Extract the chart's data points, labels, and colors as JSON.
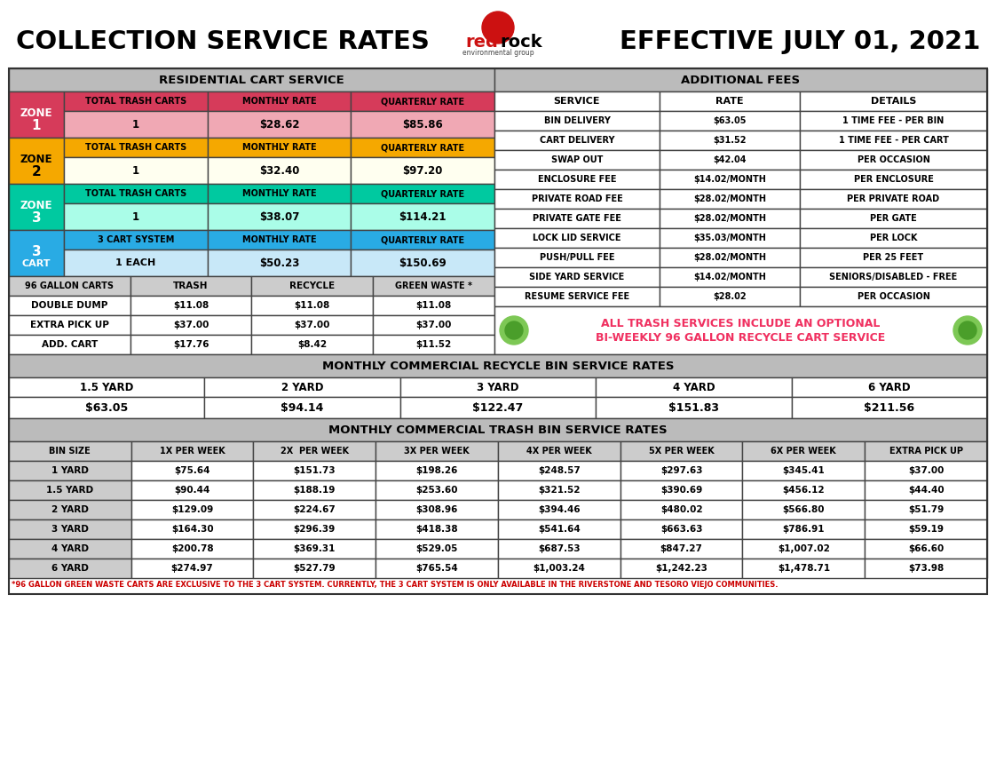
{
  "title_left": "COLLECTION SERVICE RATES",
  "title_right": "EFFECTIVE JULY 01, 2021",
  "bg_color": "#FFFFFF",
  "zone1_color_dark": "#D63B5A",
  "zone1_color_light": "#F0A8B4",
  "zone2_color_dark": "#F5A800",
  "zone2_color_light": "#FFFFF0",
  "zone3_color_dark": "#00C9A0",
  "zone3_color_light": "#AAFDE8",
  "zone4_color_dark": "#29ABE4",
  "zone4_color_light": "#C8E8F8",
  "header_gray": "#BBBBBB",
  "light_gray": "#CCCCCC",
  "mid_gray": "#AAAAAA",
  "white": "#FFFFFF",
  "banner_bg": "#FFFFFF",
  "banner_text": "#F03060",
  "fees_data": [
    [
      "BIN DELIVERY",
      "$63.05",
      "1 TIME FEE - PER BIN"
    ],
    [
      "CART DELIVERY",
      "$31.52",
      "1 TIME FEE - PER CART"
    ],
    [
      "SWAP OUT",
      "$42.04",
      "PER OCCASION"
    ],
    [
      "ENCLOSURE FEE",
      "$14.02/MONTH",
      "PER ENCLOSURE"
    ],
    [
      "PRIVATE ROAD FEE",
      "$28.02/MONTH",
      "PER PRIVATE ROAD"
    ],
    [
      "PRIVATE GATE FEE",
      "$28.02/MONTH",
      "PER GATE"
    ],
    [
      "LOCK LID SERVICE",
      "$35.03/MONTH",
      "PER LOCK"
    ],
    [
      "PUSH/PULL FEE",
      "$28.02/MONTH",
      "PER 25 FEET"
    ],
    [
      "SIDE YARD SERVICE",
      "$14.02/MONTH",
      "SENIORS/DISABLED - FREE"
    ],
    [
      "RESUME SERVICE FEE",
      "$28.02",
      "PER OCCASION"
    ]
  ],
  "gal_data": [
    [
      "DOUBLE DUMP",
      "$11.08",
      "$11.08",
      "$11.08"
    ],
    [
      "EXTRA PICK UP",
      "$37.00",
      "$37.00",
      "$37.00"
    ],
    [
      "ADD. CART",
      "$17.76",
      "$8.42",
      "$11.52"
    ]
  ],
  "mcr_cols": [
    "1.5 YARD",
    "2 YARD",
    "3 YARD",
    "4 YARD",
    "6 YARD"
  ],
  "mcr_vals": [
    "$63.05",
    "$94.14",
    "$122.47",
    "$151.83",
    "$211.56"
  ],
  "mct_cols": [
    "BIN SIZE",
    "1X PER WEEK",
    "2X  PER WEEK",
    "3X PER WEEK",
    "4X PER WEEK",
    "5X PER WEEK",
    "6X PER WEEK",
    "EXTRA PICK UP"
  ],
  "mct_rows": [
    [
      "1 YARD",
      "$75.64",
      "$151.73",
      "$198.26",
      "$248.57",
      "$297.63",
      "$345.41",
      "$37.00"
    ],
    [
      "1.5 YARD",
      "$90.44",
      "$188.19",
      "$253.60",
      "$321.52",
      "$390.69",
      "$456.12",
      "$44.40"
    ],
    [
      "2 YARD",
      "$129.09",
      "$224.67",
      "$308.96",
      "$394.46",
      "$480.02",
      "$566.80",
      "$51.79"
    ],
    [
      "3 YARD",
      "$164.30",
      "$296.39",
      "$418.38",
      "$541.64",
      "$663.63",
      "$786.91",
      "$59.19"
    ],
    [
      "4 YARD",
      "$200.78",
      "$369.31",
      "$529.05",
      "$687.53",
      "$847.27",
      "$1,007.02",
      "$66.60"
    ],
    [
      "6 YARD",
      "$274.97",
      "$527.79",
      "$765.54",
      "$1,003.24",
      "$1,242.23",
      "$1,478.71",
      "$73.98"
    ]
  ],
  "footnote": "*96 GALLON GREEN WASTE CARTS ARE EXCLUSIVE TO THE 3 CART SYSTEM. CURRENTLY, THE 3 CART SYSTEM IS ONLY AVAILABLE IN THE RIVERSTONE AND TESORO VIEJO COMMUNITIES."
}
